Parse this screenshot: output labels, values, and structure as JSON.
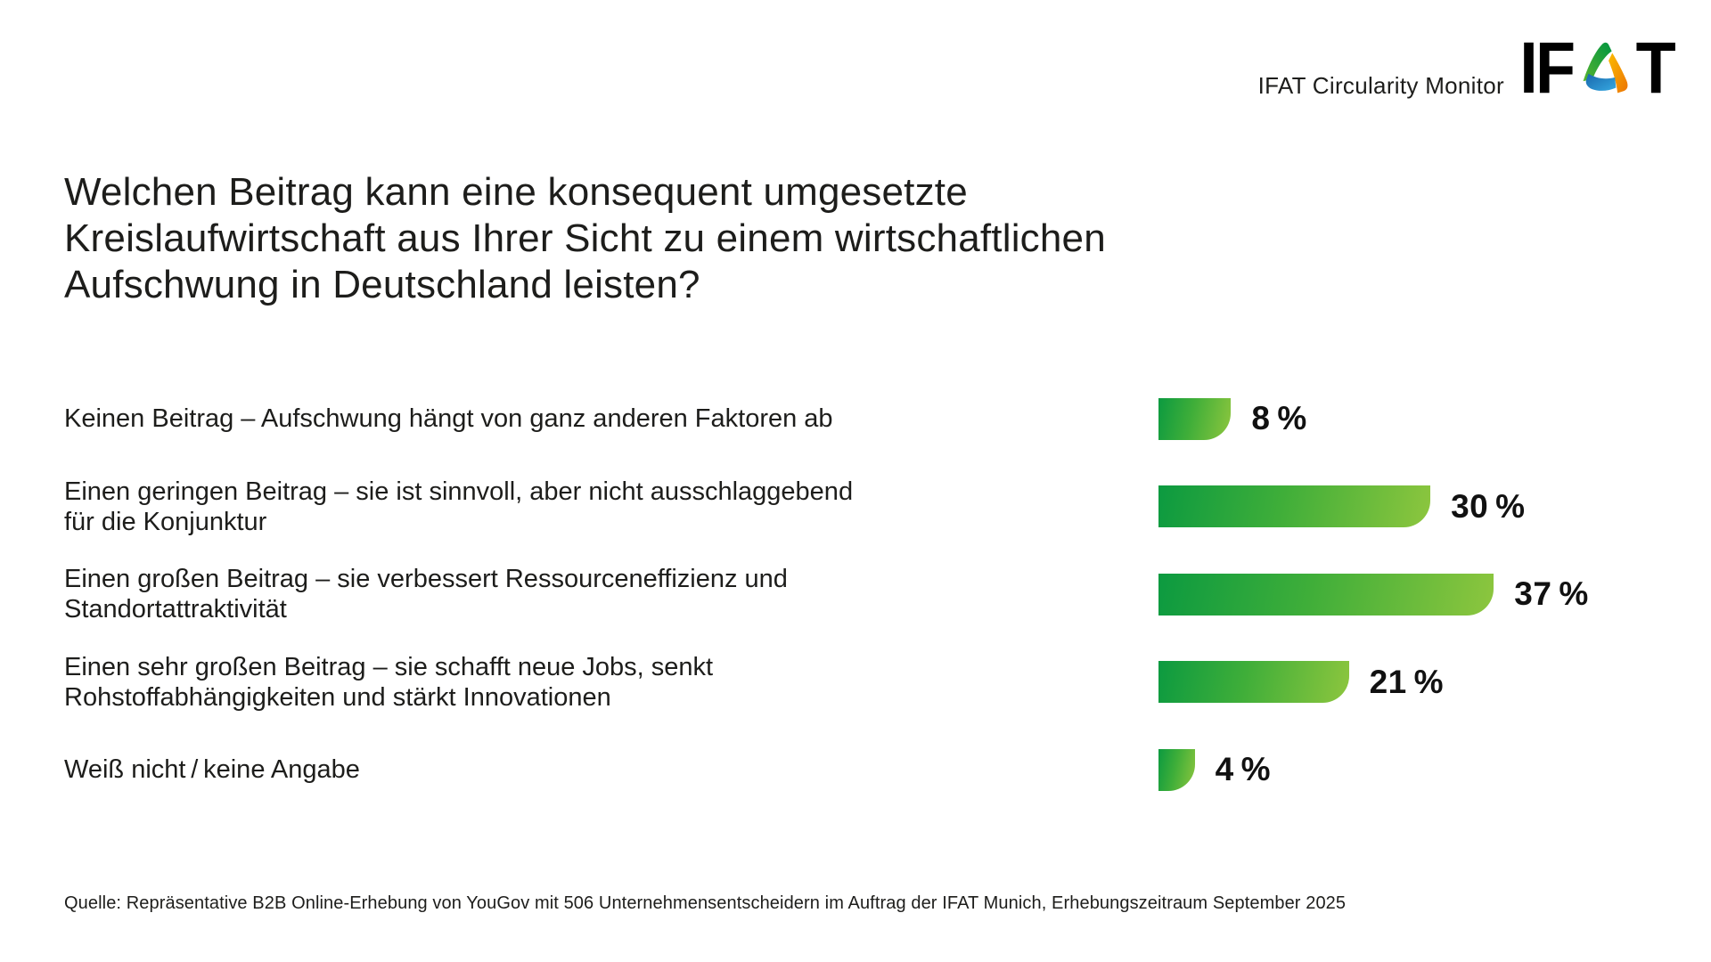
{
  "header": {
    "product_label": "IFAT Circularity Monitor",
    "logo": {
      "brand": "IFAT",
      "text_before_mark": "IF",
      "text_after_mark": "T",
      "mark": "recycle-triangle-icon"
    }
  },
  "title": "Welchen Beitrag kann eine konsequent umgesetzte\nKreislaufwirtschaft aus Ihrer Sicht zu einem wirtschaftlichen\nAufschwung in Deutschland leisten?",
  "chart_data": {
    "type": "bar",
    "orientation": "horizontal",
    "unit": "%",
    "categories": [
      "Keinen Beitrag – Aufschwung hängt von ganz anderen Faktoren ab",
      "Einen geringen Beitrag – sie ist sinnvoll, aber nicht ausschlaggebend\nfür die Konjunktur",
      "Einen großen Beitrag – sie verbessert Ressourceneffizienz und\nStandortattraktivität",
      "Einen sehr großen Beitrag – sie schafft neue Jobs, senkt\nRohstoffabhängigkeiten und stärkt Innovationen",
      "Weiß nicht / keine Angabe"
    ],
    "values": [
      8,
      30,
      37,
      21,
      4
    ],
    "value_labels": [
      "8 %",
      "30 %",
      "37 %",
      "21 %",
      "4 %"
    ],
    "axis": {
      "min": 0,
      "max": 100,
      "gridlines": false,
      "value_label_position": "right-of-bar"
    },
    "legend": null,
    "bar_gradient": [
      "#0c9a40",
      "#8dc63e"
    ]
  },
  "footer": {
    "source": "Quelle: Repräsentative B2B Online-Erhebung von YouGov mit 506 Unternehmensentscheidern im Auftrag der IFAT Munich, Erhebungszeitraum September 2025"
  }
}
